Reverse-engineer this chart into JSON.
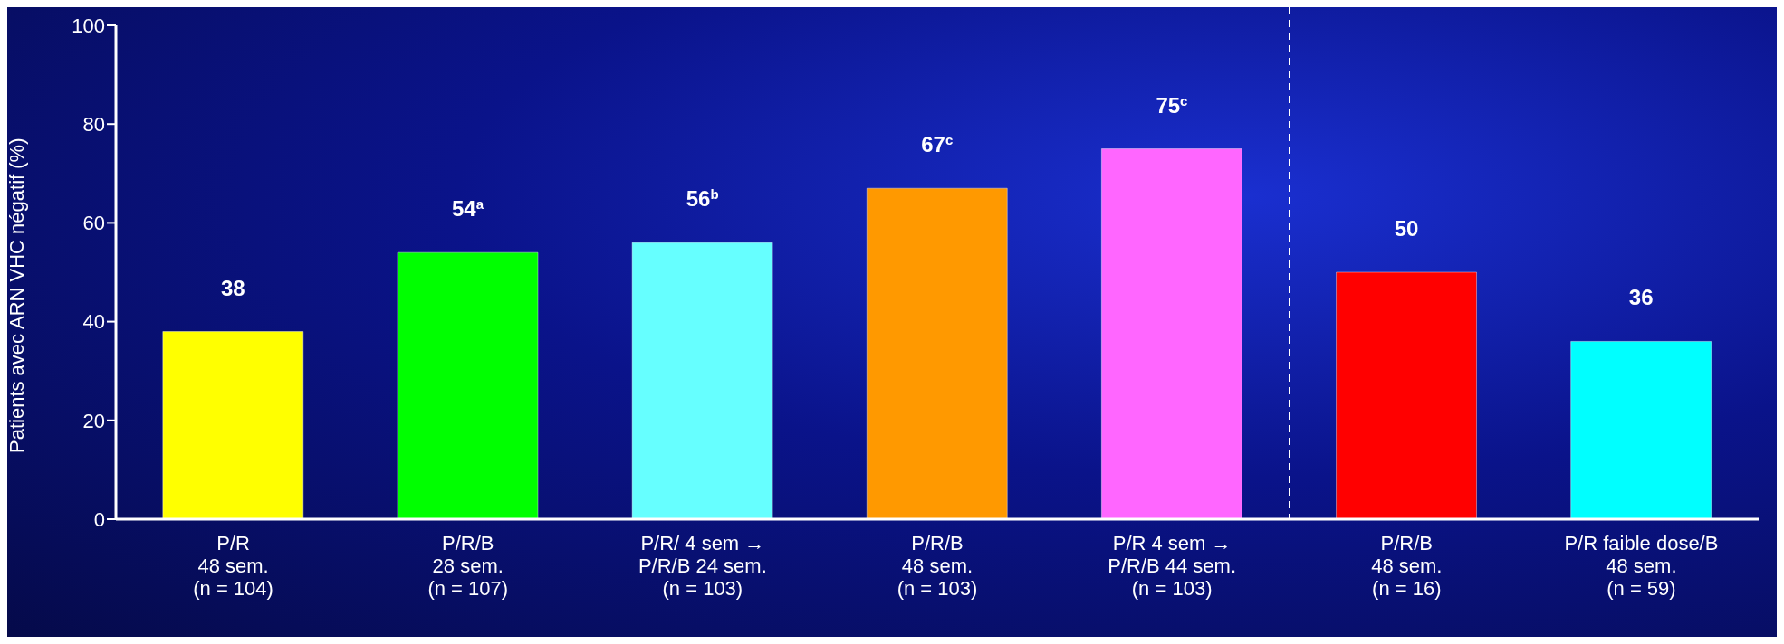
{
  "chart_data": {
    "type": "bar",
    "ylabel": "Patients avec ARN  VHC négatif (%)",
    "categories": [
      "P/R\n48 sem.\n(n = 104)",
      "P/R/B\n28 sem.\n(n = 107)",
      "P/R/ 4 sem →\nP/R/B 24 sem.\n(n = 103)",
      "P/R/B\n48 sem.\n(n = 103)",
      "P/R 4 sem →\nP/R/B 44 sem.\n(n = 103)",
      "P/R/B\n48 sem.\n(n = 16)",
      "P/R faible dose/B\n48 sem.\n(n = 59)"
    ],
    "values": [
      38,
      54,
      56,
      67,
      75,
      50,
      36
    ],
    "value_labels": [
      "38",
      "54$^{a}$",
      "56$^{b}$",
      "67$^{c}$",
      "75$^{c}$",
      "50",
      "36"
    ],
    "colors": [
      "#ffff00",
      "#00ff00",
      "#66ffff",
      "#ff9900",
      "#ff66ff",
      "#ff0000",
      "#00ffff"
    ],
    "ylim": [
      0,
      100
    ],
    "yticks": [
      0,
      20,
      40,
      60,
      80,
      100
    ],
    "grid": false
  }
}
